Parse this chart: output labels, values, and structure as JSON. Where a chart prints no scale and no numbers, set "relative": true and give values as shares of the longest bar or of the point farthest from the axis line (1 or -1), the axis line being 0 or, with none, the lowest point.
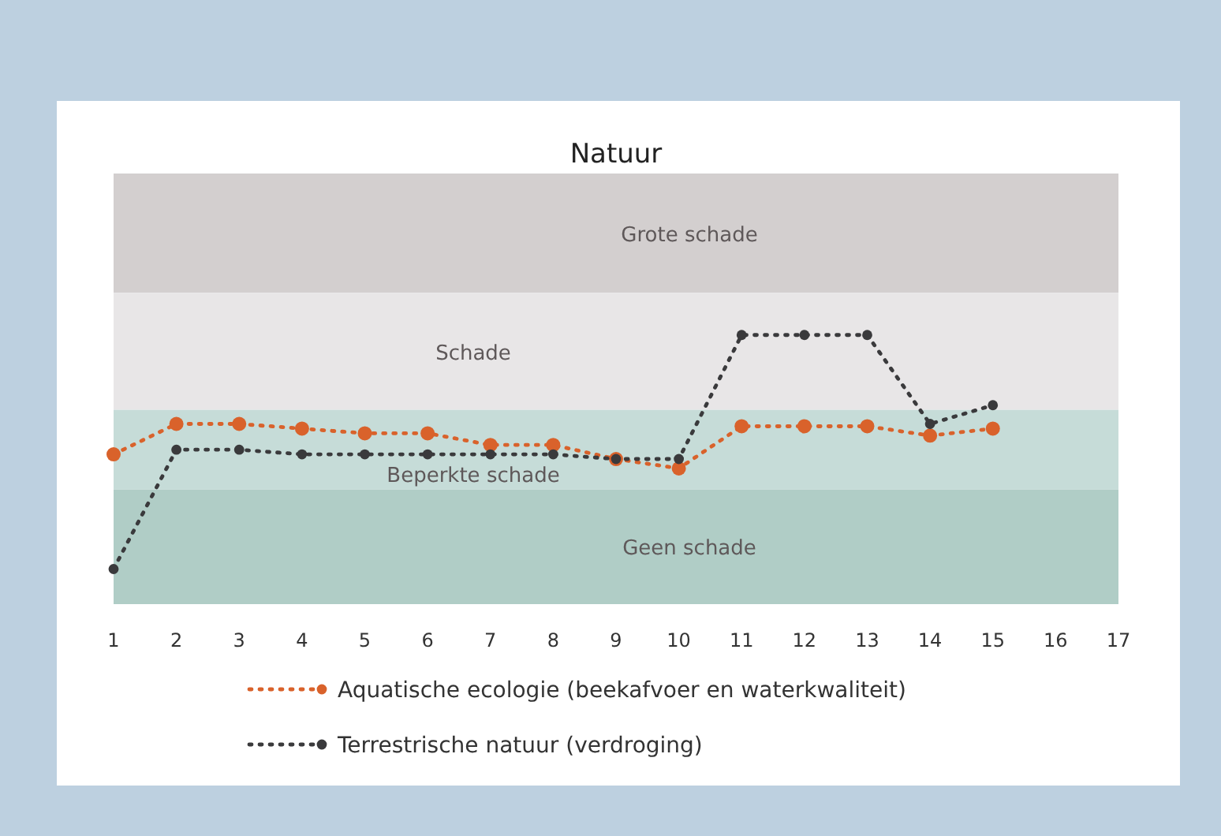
{
  "chart_data": {
    "type": "line",
    "title": "Natuur",
    "relative": true,
    "marker": "circle",
    "line_style": "dotted",
    "legend": "bottom",
    "x": [
      1,
      2,
      3,
      4,
      5,
      6,
      7,
      8,
      9,
      10,
      11,
      12,
      13,
      14,
      15
    ],
    "xlim": [
      1,
      17
    ],
    "xticks": [
      1,
      2,
      3,
      4,
      5,
      6,
      7,
      8,
      9,
      10,
      11,
      12,
      13,
      14,
      15,
      16,
      17
    ],
    "tick_labels": "x",
    "bands": [
      {
        "axis": "y",
        "from": 1.18,
        "to": 1.69,
        "label": "Grote schade",
        "color": "#d3cfcf"
      },
      {
        "axis": "y",
        "from": 0.68,
        "to": 1.18,
        "label": "Schade",
        "color": "#e8e6e7"
      },
      {
        "axis": "y",
        "from": 0.34,
        "to": 0.68,
        "label": "Beperkte schade",
        "color": "#c6dcd8"
      },
      {
        "axis": "y",
        "from": -0.15,
        "to": 0.34,
        "label": "Geen schade",
        "color": "#b0cdc6"
      }
    ],
    "series": [
      {
        "name": "Aquatische ecologie (beekafvoer en waterkwaliteit)",
        "color": "#d9622b",
        "values": [
          0.49,
          0.62,
          0.62,
          0.6,
          0.58,
          0.58,
          0.53,
          0.53,
          0.47,
          0.43,
          0.61,
          0.61,
          0.61,
          0.57,
          0.6
        ]
      },
      {
        "name": "Terrestrische natuur (verdroging)",
        "color": "#3a3a3c",
        "values": [
          0,
          0.51,
          0.51,
          0.49,
          0.49,
          0.49,
          0.49,
          0.49,
          0.47,
          0.47,
          1,
          1,
          1,
          0.62,
          0.7
        ]
      }
    ]
  }
}
